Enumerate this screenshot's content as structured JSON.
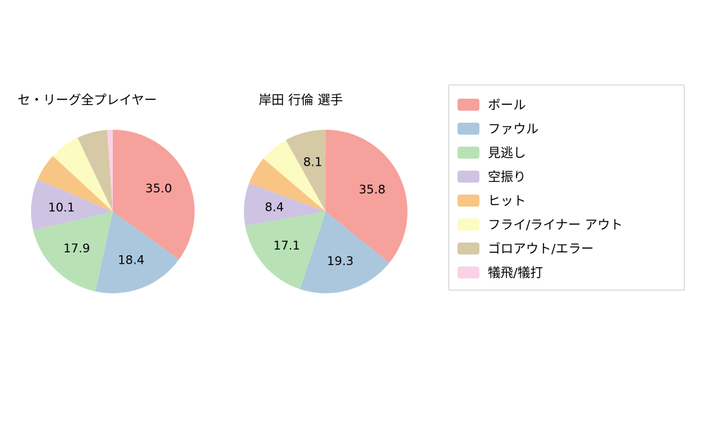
{
  "colors": {
    "background": "#ffffff",
    "legend_border": "#cccccc",
    "text": "#000000"
  },
  "legend": {
    "position": "right",
    "items": [
      {
        "label": "ボール",
        "color": "#f6a19b"
      },
      {
        "label": "ファウル",
        "color": "#abc7de"
      },
      {
        "label": "見逃し",
        "color": "#b8e2b5"
      },
      {
        "label": "空振り",
        "color": "#cfc3e3"
      },
      {
        "label": "ヒット",
        "color": "#f9c584"
      },
      {
        "label": "フライ/ライナー アウト",
        "color": "#fcfbc1"
      },
      {
        "label": "ゴロアウト/エラー",
        "color": "#d5c9a6"
      },
      {
        "label": "犠飛/犠打",
        "color": "#fad2e7"
      }
    ]
  },
  "chart_data": [
    {
      "type": "pie",
      "title": "セ・リーグ全プレイヤー",
      "labels": [
        "ボール",
        "ファウル",
        "見逃し",
        "空振り",
        "ヒット",
        "フライ/ライナー アウト",
        "ゴロアウト/エラー",
        "犠飛/犠打"
      ],
      "values": [
        35.0,
        18.4,
        17.9,
        10.1,
        5.5,
        6.0,
        6.0,
        1.1
      ],
      "display_labels": [
        "35.0",
        "18.4",
        "17.9",
        "10.1",
        "",
        "",
        "",
        ""
      ],
      "colors": [
        "#f6a19b",
        "#abc7de",
        "#b8e2b5",
        "#cfc3e3",
        "#f9c584",
        "#fcfbc1",
        "#d5c9a6",
        "#fad2e7"
      ],
      "start_angle_deg": 90,
      "direction": "clockwise",
      "legend_position": "right"
    },
    {
      "type": "pie",
      "title": "岸田 行倫  選手",
      "labels": [
        "ボール",
        "ファウル",
        "見逃し",
        "空振り",
        "ヒット",
        "フライ/ライナー アウト",
        "ゴロアウト/エラー",
        "犠飛/犠打"
      ],
      "values": [
        35.8,
        19.3,
        17.1,
        8.4,
        5.6,
        5.7,
        8.1,
        0.0
      ],
      "display_labels": [
        "35.8",
        "19.3",
        "17.1",
        "8.4",
        "",
        "",
        "8.1",
        ""
      ],
      "colors": [
        "#f6a19b",
        "#abc7de",
        "#b8e2b5",
        "#cfc3e3",
        "#f9c584",
        "#fcfbc1",
        "#d5c9a6",
        "#fad2e7"
      ],
      "start_angle_deg": 90,
      "direction": "clockwise",
      "legend_position": "right"
    }
  ]
}
